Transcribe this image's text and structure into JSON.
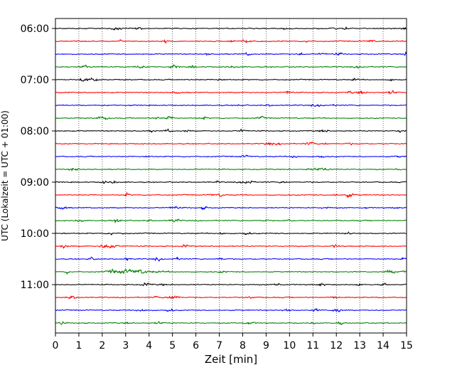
{
  "chart_data": {
    "type": "line",
    "title": "",
    "xlabel": "Zeit  [min]",
    "ylabel": "UTC (Lokalzeit = UTC + 01:00)",
    "xlim": [
      0,
      15
    ],
    "x_ticks": [
      0,
      1,
      2,
      3,
      4,
      5,
      6,
      7,
      8,
      9,
      10,
      11,
      12,
      13,
      14,
      15
    ],
    "x_tick_labels": [
      "0",
      "1",
      "2",
      "3",
      "4",
      "5",
      "6",
      "7",
      "8",
      "9",
      "10",
      "11",
      "12",
      "13",
      "14",
      "15"
    ],
    "y_tick_labels": [
      "06:00",
      "07:00",
      "08:00",
      "09:00",
      "10:00",
      "11:00"
    ],
    "grid": "vertical dotted",
    "trace_interval_minutes": 15,
    "start_time": "06:00",
    "color_cycle": [
      "#000000",
      "#ff0000",
      "#0000ff",
      "#008000"
    ],
    "traces": [
      {
        "label": "06:00",
        "color": "#000000",
        "noise": 1.0
      },
      {
        "label": "06:15",
        "color": "#ff0000",
        "noise": 1.0
      },
      {
        "label": "06:30",
        "color": "#0000ff",
        "noise": 1.0
      },
      {
        "label": "06:45",
        "color": "#008000",
        "noise": 1.1
      },
      {
        "label": "07:00",
        "color": "#000000",
        "noise": 1.0
      },
      {
        "label": "07:15",
        "color": "#ff0000",
        "noise": 1.0
      },
      {
        "label": "07:30",
        "color": "#0000ff",
        "noise": 1.0
      },
      {
        "label": "07:45",
        "color": "#008000",
        "noise": 1.0
      },
      {
        "label": "08:00",
        "color": "#000000",
        "noise": 1.0
      },
      {
        "label": "08:15",
        "color": "#ff0000",
        "noise": 1.0
      },
      {
        "label": "08:30",
        "color": "#0000ff",
        "noise": 1.0
      },
      {
        "label": "08:45",
        "color": "#008000",
        "noise": 1.0
      },
      {
        "label": "09:00",
        "color": "#000000",
        "noise": 1.0
      },
      {
        "label": "09:15",
        "color": "#ff0000",
        "noise": 1.0
      },
      {
        "label": "09:30",
        "color": "#0000ff",
        "noise": 1.0
      },
      {
        "label": "09:45",
        "color": "#008000",
        "noise": 1.0
      },
      {
        "label": "10:00",
        "color": "#000000",
        "noise": 1.0
      },
      {
        "label": "10:15",
        "color": "#ff0000",
        "noise": 1.0
      },
      {
        "label": "10:30",
        "color": "#0000ff",
        "noise": 1.0
      },
      {
        "label": "10:45",
        "color": "#008000",
        "noise": 1.0,
        "burst": {
          "start_min": 2.0,
          "peak_min": 3.1,
          "end_min": 5.5,
          "gain": 3.2
        }
      },
      {
        "label": "11:00",
        "color": "#000000",
        "noise": 1.0
      },
      {
        "label": "11:15",
        "color": "#ff0000",
        "noise": 1.0
      },
      {
        "label": "11:30",
        "color": "#0000ff",
        "noise": 1.0
      },
      {
        "label": "11:45",
        "color": "#008000",
        "noise": 1.0
      }
    ]
  }
}
